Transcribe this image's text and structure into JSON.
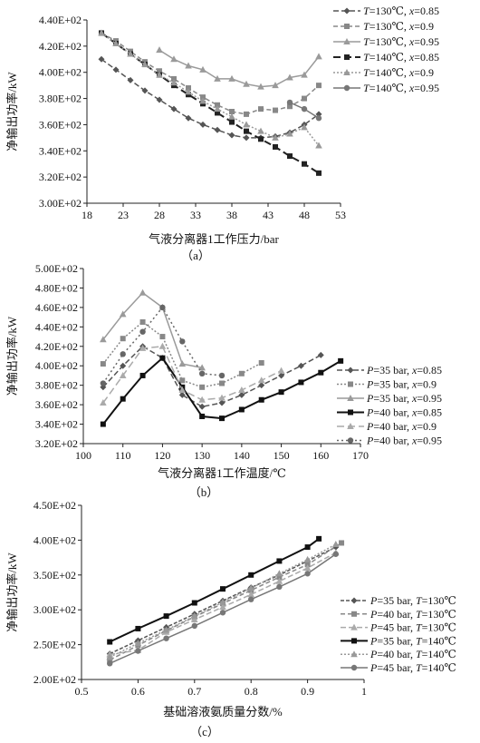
{
  "chart_data": [
    {
      "type": "line",
      "caption": "（a）",
      "xlabel": "气液分离器1工作压力/bar",
      "ylabel": "净输出功率/kW",
      "xlim": [
        18,
        53
      ],
      "ylim": [
        300,
        440
      ],
      "xticks": [
        18,
        23,
        28,
        33,
        38,
        43,
        48,
        53
      ],
      "yticks": [
        300,
        320,
        340,
        360,
        380,
        400,
        420,
        440
      ],
      "ytick_labels": [
        "3.00E+02",
        "3.20E+02",
        "3.40E+02",
        "3.60E+02",
        "3.80E+02",
        "4.00E+02",
        "4.20E+02",
        "4.40E+02"
      ],
      "legend_position": "right",
      "series": [
        {
          "name": "T=130℃, x=0.85",
          "name_parts": [
            "T",
            "=130℃, ",
            "x",
            "=0.85"
          ],
          "color": "#555555",
          "dash": "6,3",
          "marker": "diamond",
          "width": 1.5,
          "x": [
            20,
            22,
            24,
            26,
            28,
            30,
            32,
            34,
            36,
            38,
            40,
            42,
            44,
            46,
            48,
            50
          ],
          "y": [
            410,
            402,
            394,
            386,
            379,
            372,
            365,
            360,
            356,
            352,
            350,
            350,
            351,
            354,
            360,
            368
          ]
        },
        {
          "name": "T=130℃, x=0.9",
          "name_parts": [
            "T",
            "=130℃, ",
            "x",
            "=0.9"
          ],
          "color": "#888888",
          "dash": "5,3",
          "marker": "square",
          "width": 1.5,
          "x": [
            20,
            22,
            24,
            26,
            28,
            30,
            32,
            34,
            36,
            38,
            40,
            42,
            44,
            46,
            48,
            50
          ],
          "y": [
            430,
            424,
            416,
            408,
            401,
            395,
            388,
            381,
            375,
            370,
            368,
            372,
            371,
            374,
            380,
            390
          ]
        },
        {
          "name": "T=130℃, x=0.95",
          "name_parts": [
            "T",
            "=130℃, ",
            "x",
            "=0.95"
          ],
          "color": "#9a9a9a",
          "dash": "",
          "marker": "triangle",
          "width": 1.5,
          "x": [
            28,
            30,
            32,
            34,
            36,
            38,
            40,
            42,
            44,
            46,
            48,
            50
          ],
          "y": [
            417,
            410,
            405,
            402,
            395,
            395,
            391,
            389,
            390,
            396,
            398,
            412
          ]
        },
        {
          "name": "T=140℃, x=0.85",
          "name_parts": [
            "T",
            "=140℃, ",
            "x",
            "=0.85"
          ],
          "color": "#222222",
          "dash": "8,4",
          "marker": "square",
          "width": 2,
          "x": [
            20,
            22,
            24,
            26,
            28,
            30,
            32,
            34,
            36,
            38,
            40,
            42,
            44,
            46,
            48,
            50
          ],
          "y": [
            430,
            422,
            414,
            406,
            398,
            390,
            383,
            376,
            369,
            362,
            355,
            349,
            343,
            336,
            330,
            323
          ]
        },
        {
          "name": "T=140℃, x=0.9",
          "name_parts": [
            "T",
            "=140℃, ",
            "x",
            "=0.9"
          ],
          "color": "#999999",
          "dash": "2,2",
          "marker": "triangle",
          "width": 1.5,
          "x": [
            20,
            22,
            24,
            26,
            28,
            30,
            32,
            34,
            36,
            38,
            40,
            42,
            44,
            46,
            48,
            50
          ],
          "y": [
            430,
            422,
            414,
            406,
            398,
            392,
            385,
            378,
            372,
            366,
            360,
            355,
            350,
            353,
            358,
            344
          ]
        },
        {
          "name": "T=140℃, x=0.95",
          "name_parts": [
            "T",
            "=140℃, ",
            "x",
            "=0.95"
          ],
          "color": "#777777",
          "dash": "",
          "marker": "circle",
          "width": 1.5,
          "x": [
            46,
            48,
            50
          ],
          "y": [
            377,
            372,
            365
          ]
        }
      ]
    },
    {
      "type": "line",
      "caption": "（b）",
      "xlabel": "气液分离器1工作温度/℃",
      "ylabel": "净输出功率/kW",
      "xlim": [
        100,
        170
      ],
      "ylim": [
        320,
        500
      ],
      "xticks": [
        100,
        110,
        120,
        130,
        140,
        150,
        160,
        170
      ],
      "yticks": [
        320,
        340,
        360,
        380,
        400,
        420,
        440,
        460,
        480,
        500
      ],
      "ytick_labels": [
        "3.20E+02",
        "3.40E+02",
        "3.60E+02",
        "3.80E+02",
        "4.00E+02",
        "4.20E+02",
        "4.40E+02",
        "4.60E+02",
        "4.80E+02",
        "5.00E+02"
      ],
      "legend_position": "bottom-right",
      "series": [
        {
          "name": "P=35 bar, x=0.85",
          "name_parts": [
            "P",
            "=35 bar, ",
            "x",
            "=0.85"
          ],
          "color": "#555555",
          "dash": "6,3",
          "marker": "diamond",
          "width": 1.5,
          "x": [
            105,
            110,
            115,
            120,
            125,
            130,
            135,
            140,
            145,
            150,
            155,
            160
          ],
          "y": [
            378,
            400,
            420,
            408,
            370,
            358,
            362,
            370,
            380,
            390,
            400,
            411
          ]
        },
        {
          "name": "P=35 bar, x=0.9",
          "name_parts": [
            "P",
            "=35 bar, ",
            "x",
            "=0.9"
          ],
          "color": "#888888",
          "dash": "2,2",
          "marker": "square",
          "width": 1.5,
          "x": [
            105,
            110,
            115,
            120,
            125,
            130,
            135,
            140,
            145
          ],
          "y": [
            402,
            428,
            445,
            430,
            385,
            378,
            382,
            392,
            403
          ]
        },
        {
          "name": "P=35 bar, x=0.95",
          "name_parts": [
            "P",
            "=35 bar, ",
            "x",
            "=0.95"
          ],
          "color": "#9a9a9a",
          "dash": "",
          "marker": "triangle",
          "width": 1.5,
          "x": [
            105,
            110,
            115,
            120,
            125,
            130
          ],
          "y": [
            427,
            453,
            475,
            460,
            402,
            398
          ]
        },
        {
          "name": "P=40 bar, x=0.85",
          "name_parts": [
            "P",
            "=40 bar, ",
            "x",
            "=0.85"
          ],
          "color": "#111111",
          "dash": "",
          "marker": "square",
          "width": 2,
          "x": [
            105,
            110,
            115,
            120,
            125,
            130,
            135,
            140,
            145,
            150,
            155,
            160,
            165
          ],
          "y": [
            340,
            366,
            390,
            408,
            378,
            348,
            346,
            355,
            365,
            373,
            383,
            393,
            405
          ]
        },
        {
          "name": "P=40 bar, x=0.9",
          "name_parts": [
            "P",
            "=40 bar, ",
            "x",
            "=0.9"
          ],
          "color": "#aaaaaa",
          "dash": "8,4",
          "marker": "triangle",
          "width": 1.5,
          "x": [
            105,
            110,
            115,
            120,
            125,
            130,
            135,
            140,
            145,
            150
          ],
          "y": [
            362,
            390,
            418,
            420,
            375,
            365,
            367,
            375,
            385,
            395
          ]
        },
        {
          "name": "P=40 bar, x=0.95",
          "name_parts": [
            "P",
            "=40 bar, ",
            "x",
            "=0.95"
          ],
          "color": "#666666",
          "dash": "2,3",
          "marker": "circle",
          "width": 1.5,
          "x": [
            105,
            110,
            115,
            120,
            125,
            130,
            135
          ],
          "y": [
            382,
            412,
            435,
            460,
            425,
            392,
            390
          ]
        }
      ]
    },
    {
      "type": "line",
      "caption": "（c）",
      "xlabel": "基础溶液氨质量分数/%",
      "ylabel": "净输出功率/kW",
      "xlim": [
        0.5,
        1.0
      ],
      "ylim": [
        200,
        450
      ],
      "xticks": [
        0.5,
        0.6,
        0.7,
        0.8,
        0.9,
        1.0
      ],
      "xtick_labels": [
        "0.5",
        "0.6",
        "0.7",
        "0.8",
        "0.9",
        "1"
      ],
      "yticks": [
        200,
        250,
        300,
        350,
        400,
        450
      ],
      "ytick_labels": [
        "2.00E+02",
        "2.50E+02",
        "3.00E+02",
        "3.50E+02",
        "4.00E+02",
        "4.50E+02"
      ],
      "legend_position": "bottom-right",
      "series": [
        {
          "name": "P=35 bar, T=130℃",
          "name_parts": [
            "P",
            "=35 bar, ",
            "T",
            "=130℃"
          ],
          "color": "#555555",
          "dash": "4,2",
          "marker": "diamond",
          "width": 1.5,
          "x": [
            0.55,
            0.6,
            0.65,
            0.7,
            0.75,
            0.8,
            0.85,
            0.9,
            0.95
          ],
          "y": [
            237,
            256,
            275,
            294,
            313,
            332,
            350,
            370,
            390
          ]
        },
        {
          "name": "P=40 bar, T=130℃",
          "name_parts": [
            "P",
            "=40 bar, ",
            "T",
            "=130℃"
          ],
          "color": "#888888",
          "dash": "5,3",
          "marker": "square",
          "width": 1.5,
          "x": [
            0.55,
            0.6,
            0.65,
            0.7,
            0.75,
            0.8,
            0.85,
            0.9,
            0.96
          ],
          "y": [
            228,
            249,
            270,
            290,
            309,
            328,
            347,
            365,
            396
          ]
        },
        {
          "name": "P=45 bar, T=130℃",
          "name_parts": [
            "P",
            "=45 bar, ",
            "T",
            "=130℃"
          ],
          "color": "#aaaaaa",
          "dash": "6,3",
          "marker": "triangle",
          "width": 1.5,
          "x": [
            0.55,
            0.6,
            0.65,
            0.7,
            0.75,
            0.8,
            0.85,
            0.9,
            0.95
          ],
          "y": [
            236,
            242,
            268,
            286,
            304,
            322,
            341,
            360,
            382
          ]
        },
        {
          "name": "P=35 bar, T=140℃",
          "name_parts": [
            "P",
            "=35 bar, ",
            "T",
            "=140℃"
          ],
          "color": "#111111",
          "dash": "",
          "marker": "square",
          "width": 2,
          "x": [
            0.55,
            0.6,
            0.65,
            0.7,
            0.75,
            0.8,
            0.85,
            0.9,
            0.92
          ],
          "y": [
            254,
            273,
            291,
            310,
            330,
            350,
            370,
            390,
            402
          ]
        },
        {
          "name": "P=40 bar, T=140℃",
          "name_parts": [
            "P",
            "=40 bar, ",
            "T",
            "=140℃"
          ],
          "color": "#999999",
          "dash": "2,2",
          "marker": "triangle",
          "width": 1.5,
          "x": [
            0.55,
            0.6,
            0.65,
            0.7,
            0.75,
            0.8,
            0.85,
            0.9,
            0.95
          ],
          "y": [
            232,
            252,
            271,
            291,
            311,
            331,
            352,
            372,
            394
          ]
        },
        {
          "name": "P=45 bar, T=140℃",
          "name_parts": [
            "P",
            "=45 bar, ",
            "T",
            "=140℃"
          ],
          "color": "#777777",
          "dash": "",
          "marker": "circle",
          "width": 1.5,
          "x": [
            0.55,
            0.6,
            0.65,
            0.7,
            0.75,
            0.8,
            0.85,
            0.9,
            0.95
          ],
          "y": [
            223,
            241,
            259,
            277,
            296,
            315,
            333,
            352,
            380
          ]
        }
      ]
    }
  ]
}
